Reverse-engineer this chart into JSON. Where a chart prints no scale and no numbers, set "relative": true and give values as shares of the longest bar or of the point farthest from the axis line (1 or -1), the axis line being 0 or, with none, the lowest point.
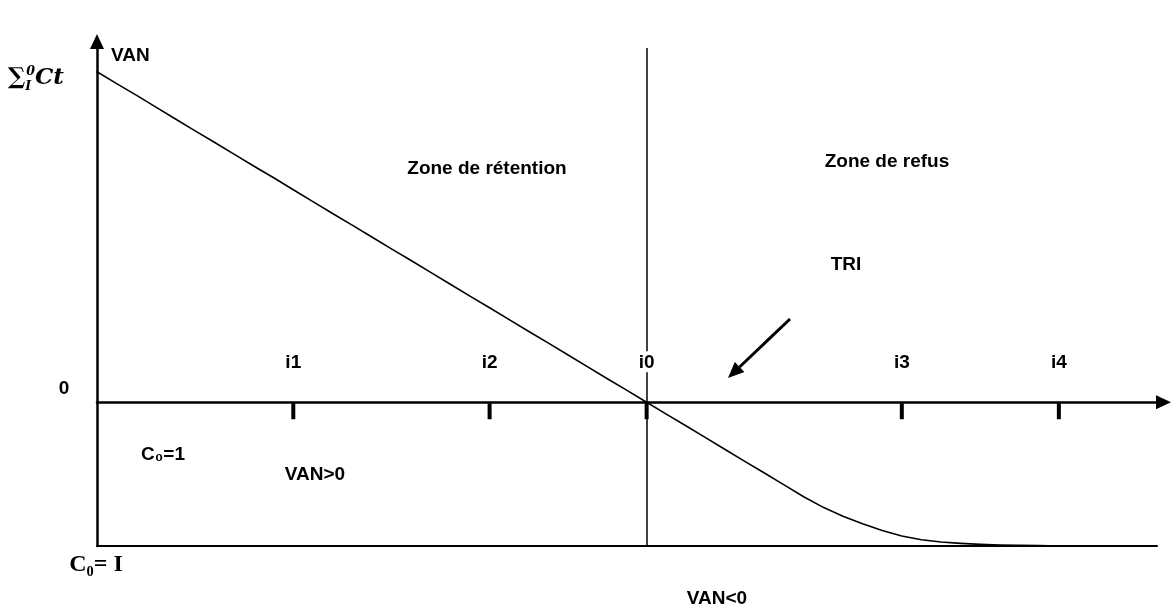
{
  "chart_data": {
    "type": "line",
    "ylabel": "VAN",
    "relative": true,
    "marker": "none",
    "line_style": "solid",
    "color": "#000000",
    "categories": [
      null,
      null,
      null,
      null,
      null,
      null,
      null,
      null,
      null,
      null,
      "i1",
      null,
      null,
      null,
      null,
      null,
      null,
      null,
      null,
      null,
      "i2",
      null,
      null,
      null,
      null,
      null,
      null,
      null,
      "i0",
      null,
      null,
      null,
      null,
      null,
      null,
      null,
      null,
      null,
      null,
      null,
      null,
      "i3",
      null,
      null,
      null,
      null,
      null,
      null,
      null,
      "i4",
      null,
      null,
      null,
      null,
      null
    ],
    "values": [
      1,
      0.964,
      0.929,
      0.893,
      0.857,
      0.821,
      0.786,
      0.75,
      0.714,
      0.679,
      0.643,
      0.607,
      0.571,
      0.536,
      0.5,
      0.464,
      0.429,
      0.393,
      0.357,
      0.321,
      0.286,
      0.25,
      0.214,
      0.179,
      0.143,
      0.107,
      0.071,
      0.036,
      0,
      -0.036,
      -0.071,
      -0.107,
      -0.143,
      -0.179,
      -0.214,
      -0.25,
      -0.286,
      -0.318,
      -0.345,
      -0.368,
      -0.388,
      -0.405,
      -0.416,
      -0.423,
      -0.427,
      -0.43,
      -0.432,
      -0.433,
      -0.434,
      -0.435,
      null,
      null,
      null,
      null,
      null
    ],
    "ref_lines": [
      {
        "axis": "x",
        "value": "i0"
      }
    ],
    "annotations": [
      "∑$_{I}$$^{0}$Ct",
      "Zone de rétention",
      "Zone de refus",
      "TRI",
      "0",
      "C₀=1",
      "VAN>0",
      "C₀= I",
      "VAN<0"
    ]
  }
}
